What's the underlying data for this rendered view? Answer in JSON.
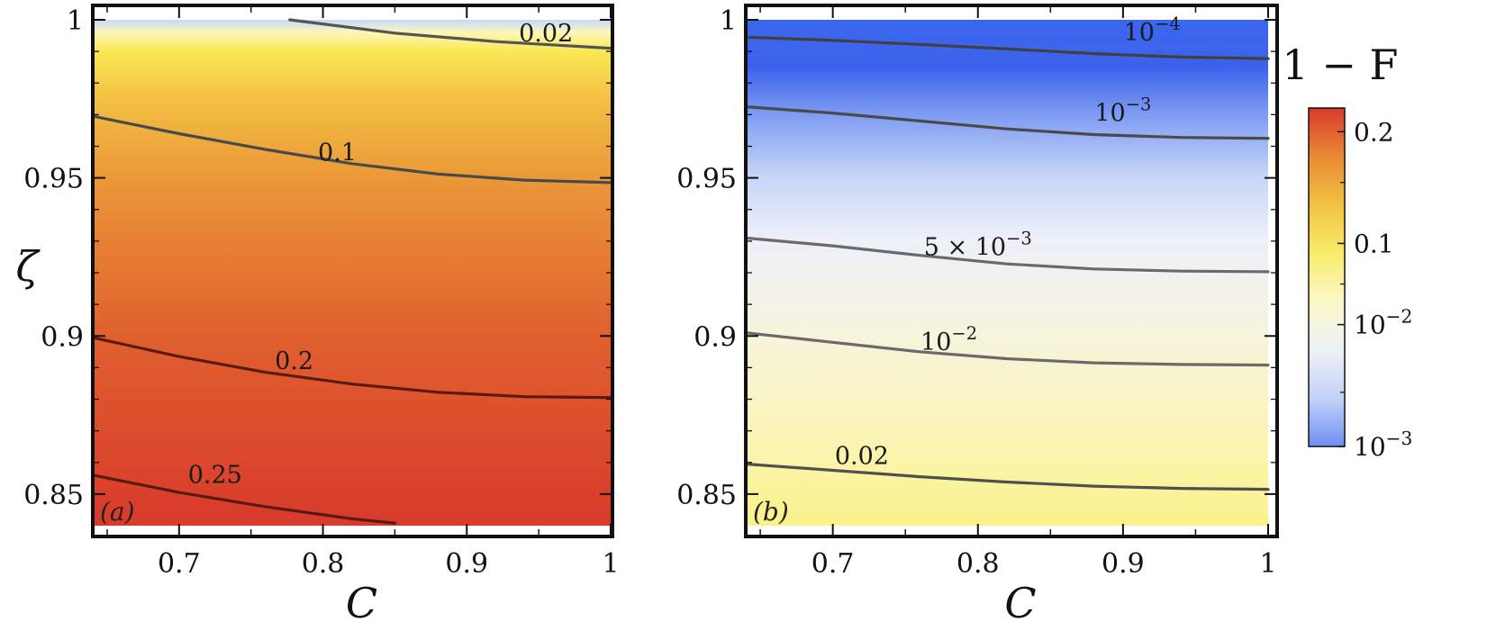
{
  "chart_data": [
    {
      "type": "heatmap",
      "panel_label": "(a)",
      "xlabel": "C",
      "ylabel": "ζ",
      "xlim": [
        0.64,
        1.0
      ],
      "ylim": [
        0.84,
        1.0
      ],
      "xticks": [
        "0.7",
        "0.8",
        "0.9",
        "1"
      ],
      "xtick_values": [
        0.7,
        0.8,
        0.9,
        1.0
      ],
      "yticks": [
        "0.85",
        "0.9",
        "0.95",
        "1"
      ],
      "ytick_values": [
        0.85,
        0.9,
        0.95,
        1.0
      ],
      "colormap": [
        {
          "zeta": 0.84,
          "color": "#d83a2c"
        },
        {
          "zeta": 0.9,
          "color": "#e0602e"
        },
        {
          "zeta": 0.95,
          "color": "#eb9838"
        },
        {
          "zeta": 0.975,
          "color": "#f3c043"
        },
        {
          "zeta": 0.99,
          "color": "#fae854"
        },
        {
          "zeta": 0.996,
          "color": "#fdf7b8"
        },
        {
          "zeta": 1.0,
          "color": "#c8d8ff"
        }
      ],
      "contours": [
        {
          "label": "0.02",
          "color": "#555555",
          "points": [
            [
              0.777,
              1.0
            ],
            [
              0.85,
              0.9958
            ],
            [
              0.92,
              0.9931
            ],
            [
              1.0,
              0.991
            ]
          ],
          "label_at": [
            0.955,
            0.9932
          ]
        },
        {
          "label": "0.1",
          "color": "#4a4a4a",
          "points": [
            [
              0.64,
              0.9695
            ],
            [
              0.7,
              0.964
            ],
            [
              0.76,
              0.959
            ],
            [
              0.82,
              0.9545
            ],
            [
              0.88,
              0.9512
            ],
            [
              0.94,
              0.9493
            ],
            [
              1.0,
              0.9485
            ]
          ],
          "label_at": [
            0.81,
            0.9555
          ]
        },
        {
          "label": "0.2",
          "color": "#5a1a12",
          "points": [
            [
              0.64,
              0.8995
            ],
            [
              0.7,
              0.8935
            ],
            [
              0.76,
              0.8885
            ],
            [
              0.82,
              0.8848
            ],
            [
              0.88,
              0.8822
            ],
            [
              0.94,
              0.8808
            ],
            [
              1.0,
              0.8805
            ]
          ],
          "label_at": [
            0.78,
            0.8895
          ]
        },
        {
          "label": "0.25",
          "color": "#5a1a12",
          "points": [
            [
              0.64,
              0.856
            ],
            [
              0.7,
              0.8505
            ],
            [
              0.76,
              0.846
            ],
            [
              0.82,
              0.8422
            ],
            [
              0.85,
              0.8408
            ]
          ],
          "label_at": [
            0.725,
            0.8535
          ]
        }
      ]
    },
    {
      "type": "heatmap",
      "panel_label": "(b)",
      "xlabel": "C",
      "ylabel": "",
      "xlim": [
        0.64,
        1.0
      ],
      "ylim": [
        0.84,
        1.0
      ],
      "xticks": [
        "0.7",
        "0.8",
        "0.9",
        "1"
      ],
      "xtick_values": [
        0.7,
        0.8,
        0.9,
        1.0
      ],
      "yticks": [
        "0.85",
        "0.9",
        "0.95",
        "1"
      ],
      "ytick_values": [
        0.85,
        0.9,
        0.95,
        1.0
      ],
      "colormap": [
        {
          "zeta": 0.84,
          "color": "#faf28a"
        },
        {
          "zeta": 0.87,
          "color": "#fbf5b8"
        },
        {
          "zeta": 0.9,
          "color": "#f6f4dc"
        },
        {
          "zeta": 0.93,
          "color": "#eef0fa"
        },
        {
          "zeta": 0.95,
          "color": "#c9d6f8"
        },
        {
          "zeta": 0.97,
          "color": "#7e9cf2"
        },
        {
          "zeta": 0.985,
          "color": "#3c62ec"
        },
        {
          "zeta": 1.0,
          "color": "#3b66ee"
        }
      ],
      "contours": [
        {
          "label": "10^-4",
          "label_base": "10",
          "label_exp": "−4",
          "color": "#404040",
          "points": [
            [
              0.64,
              0.9945
            ],
            [
              0.7,
              0.9935
            ],
            [
              0.76,
              0.9922
            ],
            [
              0.82,
              0.9908
            ],
            [
              0.88,
              0.9893
            ],
            [
              0.94,
              0.9882
            ],
            [
              1.0,
              0.9877
            ]
          ],
          "label_at": [
            0.92,
            0.9935
          ]
        },
        {
          "label": "10^-3",
          "label_base": "10",
          "label_exp": "−3",
          "color": "#4a4a4a",
          "points": [
            [
              0.64,
              0.9725
            ],
            [
              0.7,
              0.9705
            ],
            [
              0.76,
              0.968
            ],
            [
              0.82,
              0.9655
            ],
            [
              0.88,
              0.9637
            ],
            [
              0.94,
              0.9628
            ],
            [
              1.0,
              0.9625
            ]
          ],
          "label_at": [
            0.9,
            0.968
          ]
        },
        {
          "label": "5 × 10^-3",
          "label_base": "5 × 10",
          "label_exp": "−3",
          "color": "#6a6a6a",
          "points": [
            [
              0.64,
              0.931
            ],
            [
              0.7,
              0.9285
            ],
            [
              0.76,
              0.9255
            ],
            [
              0.82,
              0.9228
            ],
            [
              0.88,
              0.9212
            ],
            [
              0.94,
              0.9205
            ],
            [
              1.0,
              0.9203
            ]
          ],
          "label_at": [
            0.8,
            0.9255
          ]
        },
        {
          "label": "10^-2",
          "label_base": "10",
          "label_exp": "−2",
          "color": "#6a6a6a",
          "points": [
            [
              0.64,
              0.901
            ],
            [
              0.7,
              0.898
            ],
            [
              0.76,
              0.895
            ],
            [
              0.82,
              0.8928
            ],
            [
              0.88,
              0.8915
            ],
            [
              0.94,
              0.891
            ],
            [
              1.0,
              0.8908
            ]
          ],
          "label_at": [
            0.78,
            0.8955
          ]
        },
        {
          "label": "0.02",
          "color": "#505050",
          "points": [
            [
              0.64,
              0.8595
            ],
            [
              0.7,
              0.8575
            ],
            [
              0.76,
              0.8555
            ],
            [
              0.82,
              0.8538
            ],
            [
              0.88,
              0.8525
            ],
            [
              0.94,
              0.8518
            ],
            [
              1.0,
              0.8515
            ]
          ],
          "label_at": [
            0.72,
            0.8595
          ]
        }
      ]
    }
  ],
  "colorbar": {
    "title": "1 − F",
    "ticks": [
      {
        "label": "0.2",
        "frac": 0.93
      },
      {
        "label": "0.1",
        "frac": 0.6
      },
      {
        "label_base": "10",
        "label_exp": "−2",
        "frac": 0.36
      },
      {
        "label_base": "10",
        "label_exp": "−3",
        "frac": 0.0
      }
    ],
    "gradient": [
      "#6d8ff2",
      "#c4d2f7",
      "#eef1f8",
      "#fbf7c8",
      "#f8ec6a",
      "#f2c143",
      "#ea8a35",
      "#d83a2c"
    ]
  }
}
